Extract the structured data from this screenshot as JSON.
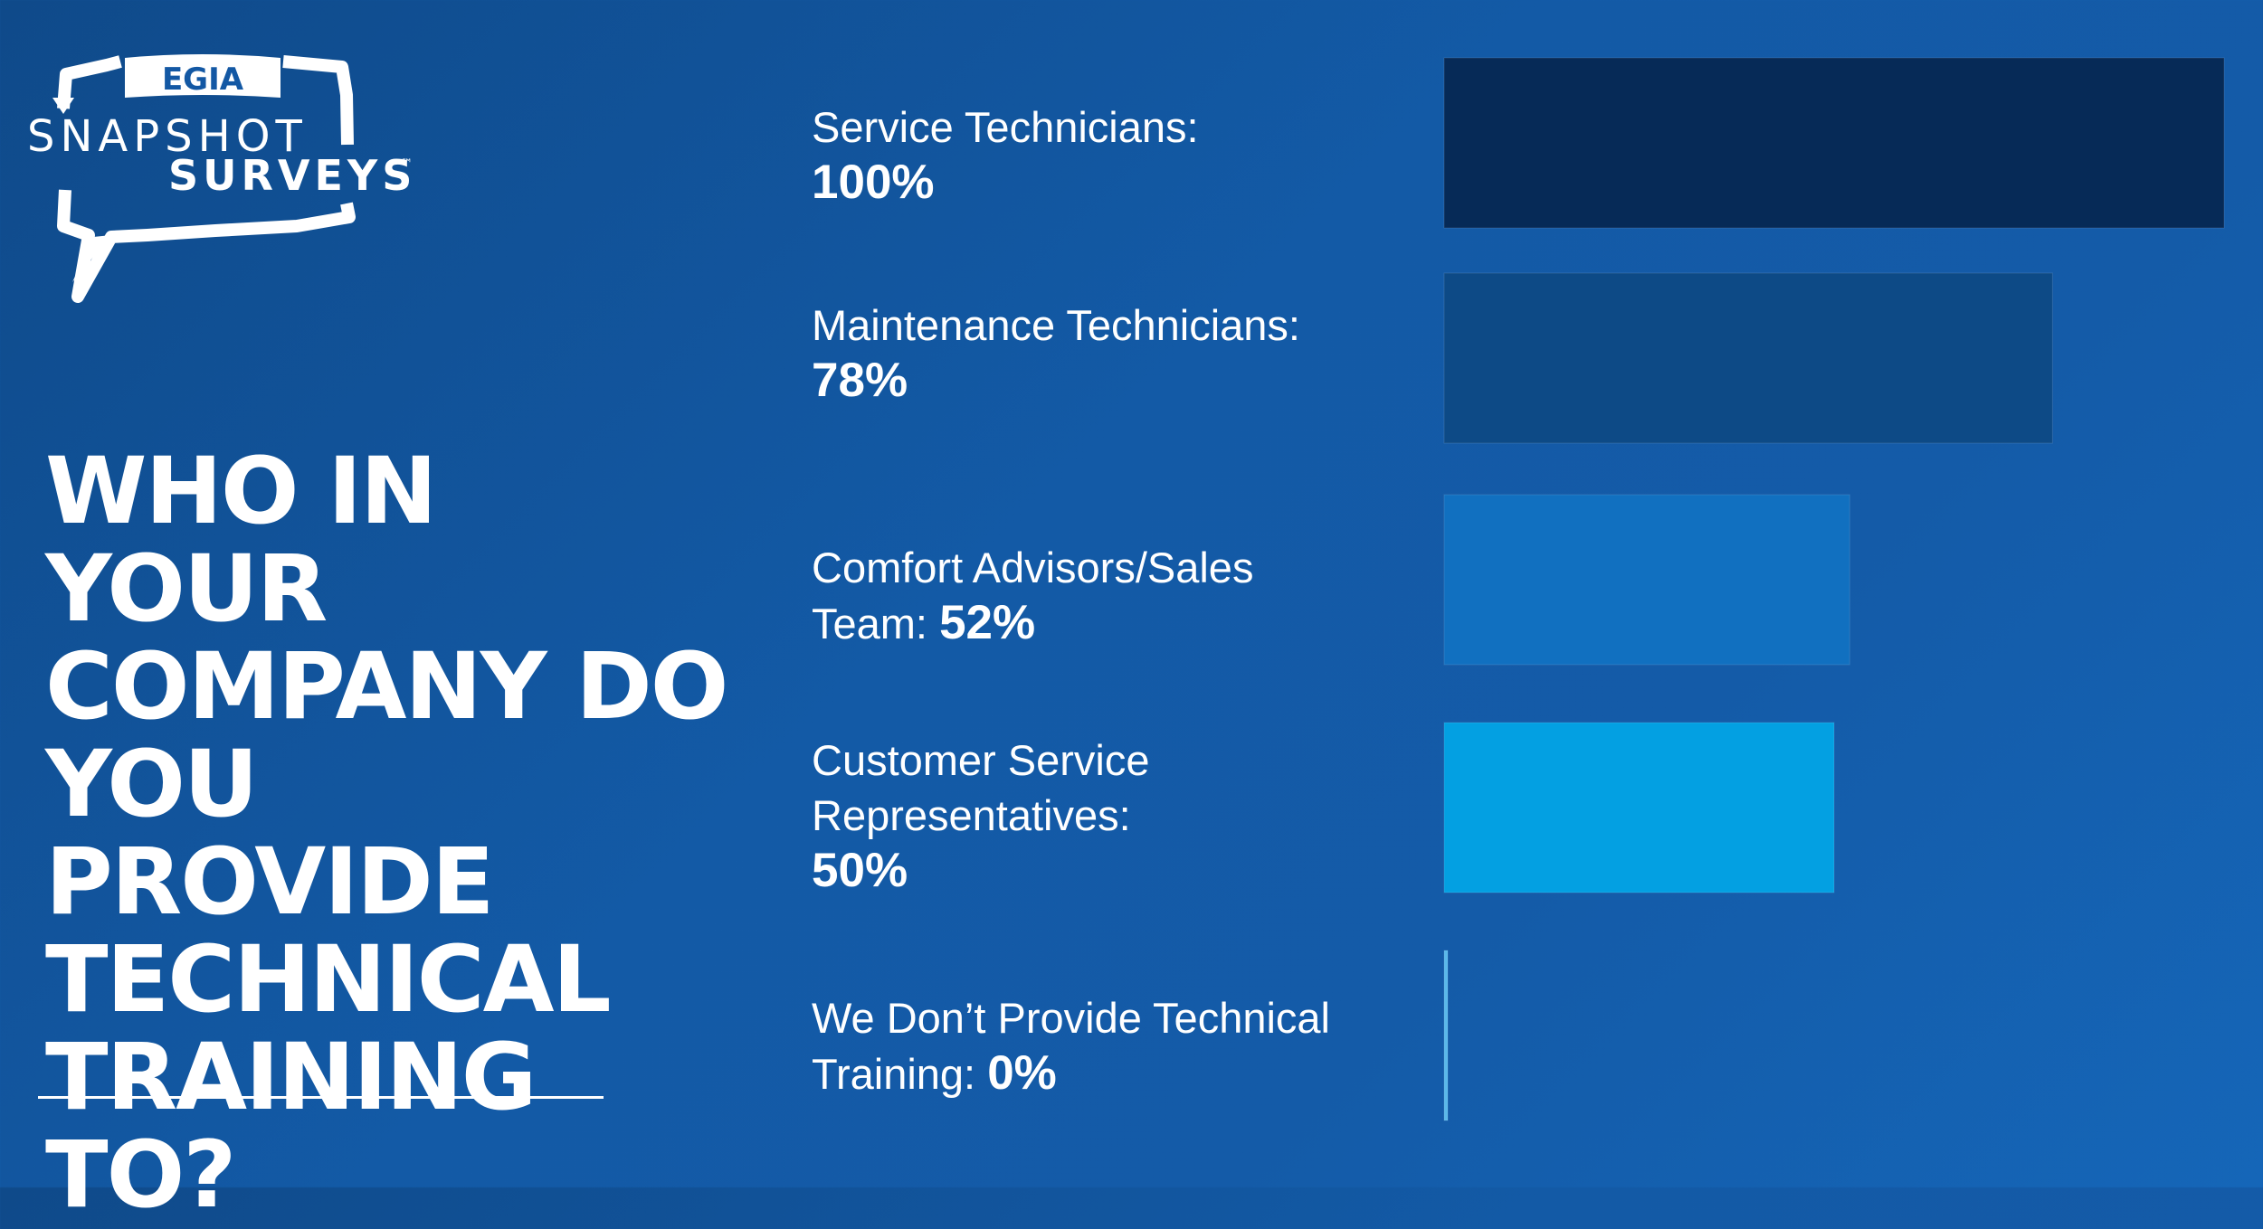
{
  "logo": {
    "org": "EGIA",
    "line1": "SNAPSHOT",
    "line2": "SURVEYS",
    "trademark": "™"
  },
  "headline": {
    "lines": [
      "WHO IN YOUR",
      "COMPANY DO",
      "YOU PROVIDE",
      "TECHNICAL",
      "TRAINING TO?"
    ]
  },
  "colors": {
    "background": "#1358a4",
    "bar_1": "#062a57",
    "bar_2": "#0d4a86",
    "bar_3": "#1170c0",
    "bar_4": "#03a0e2",
    "bar_5": "#5ab8ea"
  },
  "chart_data": {
    "type": "bar",
    "orientation": "horizontal",
    "title": "WHO IN YOUR COMPANY DO YOU PROVIDE TECHNICAL TRAINING TO?",
    "categories": [
      "Service Technicians:",
      "Maintenance Technicians:",
      "Comfort Advisors/Sales Team:",
      "Customer Service Representatives:",
      "We Don’t Provide Technical Training:"
    ],
    "values": [
      100,
      78,
      52,
      50,
      0
    ],
    "value_labels": [
      "100%",
      "78%",
      "52%",
      "50%",
      "0%"
    ],
    "xlim": [
      0,
      100
    ],
    "grid": false,
    "legend": "none"
  },
  "label_lines": [
    {
      "lines": [
        "Service Technicians:"
      ],
      "value_inline": false
    },
    {
      "lines": [
        "Maintenance Technicians:"
      ],
      "value_inline": false
    },
    {
      "lines": [
        "Comfort Advisors/Sales",
        "Team:"
      ],
      "value_inline": true
    },
    {
      "lines": [
        "Customer Service",
        "Representatives:"
      ],
      "value_inline": false
    },
    {
      "lines": [
        "We Don’t Provide Technical",
        "Training:"
      ],
      "value_inline": true
    }
  ]
}
